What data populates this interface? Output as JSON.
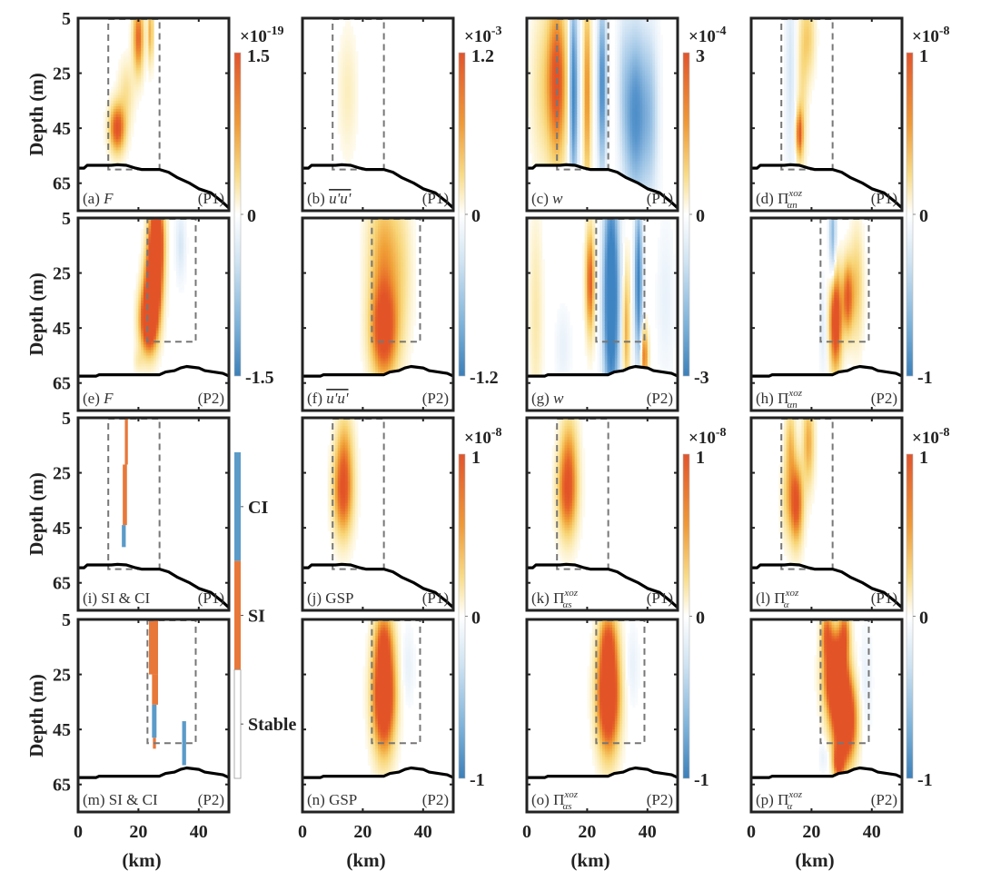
{
  "chart_data": {
    "type": "heatmap",
    "title": "",
    "xlabel": "(km)",
    "ylabel": "Depth (m)",
    "xlim": [
      0,
      50
    ],
    "ylim": [
      5,
      75
    ],
    "x_ticks": [
      "0",
      "20",
      "40"
    ],
    "x_tick_values": [
      0,
      20,
      40
    ],
    "y_ticks": [
      "5",
      "25",
      "45",
      "65"
    ],
    "y_tick_values": [
      5,
      25,
      45,
      65
    ],
    "profiles": {
      "P1": {
        "bathymetry": [
          [
            0,
            59.5
          ],
          [
            2,
            59.5
          ],
          [
            3,
            58.5
          ],
          [
            11,
            58.5
          ],
          [
            13,
            58.3
          ],
          [
            16,
            58.5
          ],
          [
            19,
            59.5
          ],
          [
            21,
            60
          ],
          [
            27,
            60
          ],
          [
            30,
            61
          ],
          [
            33,
            63
          ],
          [
            37,
            65
          ],
          [
            40,
            67
          ],
          [
            44,
            68.5
          ],
          [
            48,
            72
          ],
          [
            50,
            74
          ]
        ],
        "box": {
          "x": [
            10,
            27
          ],
          "depth": [
            5,
            60
          ]
        }
      },
      "P2": {
        "bathymetry": [
          [
            0,
            62.5
          ],
          [
            6,
            62.5
          ],
          [
            7,
            62
          ],
          [
            27,
            62
          ],
          [
            29,
            61
          ],
          [
            32,
            60.5
          ],
          [
            34,
            59.5
          ],
          [
            36,
            59
          ],
          [
            40,
            59.5
          ],
          [
            42,
            60.5
          ],
          [
            45,
            61
          ],
          [
            48,
            61.5
          ],
          [
            50,
            62.5
          ]
        ],
        "box": {
          "x": [
            23,
            39
          ],
          "depth": [
            5,
            50
          ]
        }
      }
    },
    "colorbars": [
      {
        "id": "cb1",
        "exponent": "-19",
        "max_label": "1.5",
        "mid_label": "0",
        "min_label": "-1.5",
        "range": [
          -1.5,
          1.5
        ],
        "applies_to": [
          "a",
          "e"
        ]
      },
      {
        "id": "cb2",
        "exponent": "-3",
        "max_label": "1.2",
        "mid_label": "0",
        "min_label": "-1.2",
        "range": [
          -1.2,
          1.2
        ],
        "applies_to": [
          "b",
          "f"
        ]
      },
      {
        "id": "cb3",
        "exponent": "-4",
        "max_label": "3",
        "mid_label": "0",
        "min_label": "-3",
        "range": [
          -3,
          3
        ],
        "applies_to": [
          "c",
          "g"
        ]
      },
      {
        "id": "cb4",
        "exponent": "-8",
        "max_label": "1",
        "mid_label": "0",
        "min_label": "-1",
        "range": [
          -1,
          1
        ],
        "applies_to": [
          "d",
          "h"
        ]
      },
      {
        "id": "cb6",
        "exponent": "-8",
        "max_label": "1",
        "mid_label": "0",
        "min_label": "-1",
        "range": [
          -1,
          1
        ],
        "applies_to": [
          "j",
          "n"
        ]
      },
      {
        "id": "cb7",
        "exponent": "-8",
        "max_label": "1",
        "mid_label": "0",
        "min_label": "-1",
        "range": [
          -1,
          1
        ],
        "applies_to": [
          "k",
          "o"
        ]
      },
      {
        "id": "cb8",
        "exponent": "-8",
        "max_label": "1",
        "mid_label": "0",
        "min_label": "-1",
        "range": [
          -1,
          1
        ],
        "applies_to": [
          "l",
          "p"
        ]
      }
    ],
    "categorical_colorbar": {
      "applies_to": [
        "i",
        "m"
      ],
      "categories": [
        {
          "label": "CI",
          "color": "#5b9bc8"
        },
        {
          "label": "SI",
          "color": "#e8783a"
        },
        {
          "label": "Stable",
          "color": "#ffffff"
        }
      ]
    },
    "colormap": {
      "positive_strong": "#e6552a",
      "positive_mid": "#f0a030",
      "positive_weak": "#fbe7a0",
      "zero": "#ffffff",
      "negative_weak": "#cfe4f3",
      "negative_strong": "#3f86c2"
    },
    "panels": [
      {
        "id": "a",
        "label": "(a)",
        "var": "F",
        "var_style": "italic",
        "profile": "P1",
        "row": 0,
        "col": 0,
        "blobs": [
          {
            "x": 13,
            "d": 45,
            "sx": 1.8,
            "sd": 6,
            "v": 1.0
          },
          {
            "x": 20,
            "d": 12,
            "sx": 1.2,
            "sd": 9,
            "v": 0.85
          },
          {
            "x": 24,
            "d": 10,
            "sx": 0.6,
            "sd": 8,
            "v": 0.55
          },
          {
            "x": 16,
            "d": 32,
            "sx": 1.8,
            "sd": 8,
            "v": 0.25
          }
        ]
      },
      {
        "id": "b",
        "label": "(b)",
        "var": "u'u'",
        "var_style": "overline-italic",
        "profile": "P1",
        "row": 0,
        "col": 1,
        "blobs": [
          {
            "x": 15,
            "d": 32,
            "sx": 2.2,
            "sd": 16,
            "v": 0.15
          }
        ]
      },
      {
        "id": "c",
        "label": "(c)",
        "var": "w",
        "var_style": "italic",
        "profile": "P1",
        "row": 0,
        "col": 2,
        "blobs": [
          {
            "x": 10,
            "d": 28,
            "sx": 2.2,
            "sd": 20,
            "v": 1.0
          },
          {
            "x": 5,
            "d": 30,
            "sx": 2.5,
            "sd": 20,
            "v": 0.25
          },
          {
            "x": 15.5,
            "d": 32,
            "sx": 1.0,
            "sd": 25,
            "v": -1.0
          },
          {
            "x": 20,
            "d": 32,
            "sx": 0.8,
            "sd": 25,
            "v": 0.7
          },
          {
            "x": 25,
            "d": 30,
            "sx": 1.0,
            "sd": 22,
            "v": -0.9
          },
          {
            "x": 36,
            "d": 40,
            "sx": 2.5,
            "sd": 22,
            "v": -0.85
          },
          {
            "x": 41,
            "d": 40,
            "sx": 2.0,
            "sd": 22,
            "v": -0.45
          },
          {
            "x": 32,
            "d": 30,
            "sx": 1.5,
            "sd": 22,
            "v": -0.25
          }
        ]
      },
      {
        "id": "d",
        "label": "(d)",
        "var": "Π",
        "var_sup": "xoz",
        "var_sub": "αn",
        "profile": "P1",
        "row": 0,
        "col": 3,
        "blobs": [
          {
            "x": 16,
            "d": 47,
            "sx": 0.8,
            "sd": 6,
            "v": 0.85
          },
          {
            "x": 19,
            "d": 12,
            "sx": 1.5,
            "sd": 10,
            "v": 0.35
          },
          {
            "x": 13,
            "d": 25,
            "sx": 1.2,
            "sd": 28,
            "v": -0.25
          },
          {
            "x": 17,
            "d": 30,
            "sx": 1.2,
            "sd": 20,
            "v": 0.25
          }
        ]
      },
      {
        "id": "e",
        "label": "(e)",
        "var": "F",
        "var_style": "italic",
        "profile": "P2",
        "row": 1,
        "col": 0,
        "blobs": [
          {
            "x": 26,
            "d": 12,
            "sx": 1.6,
            "sd": 10,
            "v": 1.6
          },
          {
            "x": 25,
            "d": 28,
            "sx": 1.8,
            "sd": 9,
            "v": 1.6
          },
          {
            "x": 23.5,
            "d": 42,
            "sx": 2.0,
            "sd": 8,
            "v": 1.6
          },
          {
            "x": 34,
            "d": 15,
            "sx": 1.2,
            "sd": 9,
            "v": -0.25
          },
          {
            "x": 20,
            "d": 57,
            "sx": 1.2,
            "sd": 3,
            "v": 0.15
          }
        ]
      },
      {
        "id": "f",
        "label": "(f)",
        "var": "u'u'",
        "var_style": "overline-italic",
        "profile": "P2",
        "row": 1,
        "col": 1,
        "blobs": [
          {
            "x": 27,
            "d": 46,
            "sx": 3.0,
            "sd": 12,
            "v": 1.15
          },
          {
            "x": 27,
            "d": 18,
            "sx": 3.5,
            "sd": 16,
            "v": 0.55
          },
          {
            "x": 33,
            "d": 25,
            "sx": 2.5,
            "sd": 20,
            "v": 0.2
          }
        ]
      },
      {
        "id": "g",
        "label": "(g)",
        "var": "w",
        "var_style": "italic",
        "profile": "P2",
        "row": 1,
        "col": 2,
        "blobs": [
          {
            "x": 21,
            "d": 28,
            "sx": 1.0,
            "sd": 13,
            "v": 0.9
          },
          {
            "x": 28,
            "d": 34,
            "sx": 1.8,
            "sd": 28,
            "v": -1.4
          },
          {
            "x": 37,
            "d": 28,
            "sx": 0.9,
            "sd": 20,
            "v": -1.0
          },
          {
            "x": 33,
            "d": 45,
            "sx": 0.8,
            "sd": 16,
            "v": 0.55
          },
          {
            "x": 39,
            "d": 55,
            "sx": 0.8,
            "sd": 7,
            "v": 0.8
          },
          {
            "x": 3,
            "d": 40,
            "sx": 1.5,
            "sd": 25,
            "v": 0.2
          },
          {
            "x": 12,
            "d": 52,
            "sx": 1.8,
            "sd": 10,
            "v": -0.15
          },
          {
            "x": 46,
            "d": 35,
            "sx": 2,
            "sd": 20,
            "v": -0.15
          }
        ]
      },
      {
        "id": "h",
        "label": "(h)",
        "var": "Π",
        "var_sup": "xoz",
        "var_sub": "αn",
        "profile": "P2",
        "row": 1,
        "col": 3,
        "blobs": [
          {
            "x": 28,
            "d": 42,
            "sx": 1.4,
            "sd": 12,
            "v": 1.3
          },
          {
            "x": 32,
            "d": 34,
            "sx": 1.2,
            "sd": 9,
            "v": 0.9
          },
          {
            "x": 35,
            "d": 30,
            "sx": 1.5,
            "sd": 14,
            "v": 0.4
          },
          {
            "x": 27,
            "d": 12,
            "sx": 0.8,
            "sd": 14,
            "v": -0.6
          },
          {
            "x": 24,
            "d": 45,
            "sx": 1.0,
            "sd": 12,
            "v": -0.2
          }
        ]
      },
      {
        "id": "i",
        "label": "(i)",
        "var": "SI & CI",
        "var_style": "roman",
        "profile": "P1",
        "row": 2,
        "col": 0,
        "categorical": true,
        "segments": [
          {
            "x": [
              15.5,
              16.5
            ],
            "d": [
              5,
              22
            ],
            "cls": "SI"
          },
          {
            "x": [
              14.8,
              16.2
            ],
            "d": [
              22,
              44
            ],
            "cls": "SI"
          },
          {
            "x": [
              14.5,
              15.8
            ],
            "d": [
              44,
              52
            ],
            "cls": "CI"
          }
        ]
      },
      {
        "id": "j",
        "label": "(j)",
        "var": "GSP",
        "var_style": "roman",
        "profile": "P1",
        "row": 2,
        "col": 1,
        "blobs": [
          {
            "x": 13.5,
            "d": 32,
            "sx": 2.2,
            "sd": 11,
            "v": 0.95
          },
          {
            "x": 14,
            "d": 15,
            "sx": 2.0,
            "sd": 10,
            "v": 0.35
          }
        ]
      },
      {
        "id": "k",
        "label": "(k)",
        "var": "Π",
        "var_sup": "xoz",
        "var_sub": "αs",
        "profile": "P1",
        "row": 2,
        "col": 2,
        "blobs": [
          {
            "x": 13.5,
            "d": 32,
            "sx": 2.2,
            "sd": 11,
            "v": 0.95
          },
          {
            "x": 14,
            "d": 15,
            "sx": 2.0,
            "sd": 10,
            "v": 0.35
          }
        ]
      },
      {
        "id": "l",
        "label": "(l)",
        "var": "Π",
        "var_sup": "xoz",
        "var_sub": "α",
        "profile": "P1",
        "row": 2,
        "col": 3,
        "blobs": [
          {
            "x": 15,
            "d": 36,
            "sx": 1.5,
            "sd": 10,
            "v": 1.0
          },
          {
            "x": 13,
            "d": 15,
            "sx": 1.2,
            "sd": 10,
            "v": 0.45
          },
          {
            "x": 19,
            "d": 14,
            "sx": 1.3,
            "sd": 11,
            "v": 0.55
          },
          {
            "x": 12,
            "d": 35,
            "sx": 1.5,
            "sd": 10,
            "v": 0.3
          }
        ]
      },
      {
        "id": "m",
        "label": "(m)",
        "var": "SI & CI",
        "var_style": "roman",
        "profile": "P2",
        "row": 3,
        "col": 0,
        "categorical": true,
        "segments": [
          {
            "x": [
              23.5,
              26.5
            ],
            "d": [
              5,
              25
            ],
            "cls": "SI"
          },
          {
            "x": [
              24.5,
              26.5
            ],
            "d": [
              25,
              36
            ],
            "cls": "SI"
          },
          {
            "x": [
              24.5,
              26
            ],
            "d": [
              36,
              48
            ],
            "cls": "CI"
          },
          {
            "x": [
              24.8,
              25.8
            ],
            "d": [
              48,
              52
            ],
            "cls": "SI"
          },
          {
            "x": [
              34.5,
              35.8
            ],
            "d": [
              42,
              58
            ],
            "cls": "CI"
          }
        ]
      },
      {
        "id": "n",
        "label": "(n)",
        "var": "GSP",
        "var_style": "roman",
        "profile": "P2",
        "row": 3,
        "col": 1,
        "blobs": [
          {
            "x": 27,
            "d": 32,
            "sx": 2.5,
            "sd": 14,
            "v": 1.6
          },
          {
            "x": 27,
            "d": 12,
            "sx": 2.0,
            "sd": 7,
            "v": 0.5
          },
          {
            "x": 35,
            "d": 22,
            "sx": 1.5,
            "sd": 10,
            "v": -0.15
          }
        ]
      },
      {
        "id": "o",
        "label": "(o)",
        "var": "Π",
        "var_sup": "xoz",
        "var_sub": "αs",
        "profile": "P2",
        "row": 3,
        "col": 2,
        "blobs": [
          {
            "x": 27,
            "d": 32,
            "sx": 2.5,
            "sd": 14,
            "v": 1.6
          },
          {
            "x": 27,
            "d": 12,
            "sx": 2.0,
            "sd": 7,
            "v": 0.5
          },
          {
            "x": 35,
            "d": 22,
            "sx": 1.5,
            "sd": 10,
            "v": -0.15
          }
        ]
      },
      {
        "id": "p",
        "label": "(p)",
        "var": "Π",
        "var_sup": "xoz",
        "var_sub": "α",
        "profile": "P2",
        "row": 3,
        "col": 3,
        "blobs": [
          {
            "x": 28,
            "d": 25,
            "sx": 2.5,
            "sd": 10,
            "v": 1.8
          },
          {
            "x": 31,
            "d": 42,
            "sx": 2.5,
            "sd": 10,
            "v": 1.8
          },
          {
            "x": 25,
            "d": 10,
            "sx": 1.2,
            "sd": 6,
            "v": 0.7
          },
          {
            "x": 31,
            "d": 10,
            "sx": 1.2,
            "sd": 6,
            "v": 0.7
          },
          {
            "x": 29,
            "d": 57,
            "sx": 1.2,
            "sd": 4,
            "v": 1.0
          },
          {
            "x": 38,
            "d": 28,
            "sx": 1.5,
            "sd": 14,
            "v": -0.15
          },
          {
            "x": 24,
            "d": 55,
            "sx": 1.2,
            "sd": 4,
            "v": -0.15
          }
        ]
      }
    ]
  },
  "labels": {
    "ylabel": "Depth (m)",
    "xlabel": "(km)",
    "profile_P1": "(P1)",
    "profile_P2": "(P2)",
    "times": "×10"
  }
}
